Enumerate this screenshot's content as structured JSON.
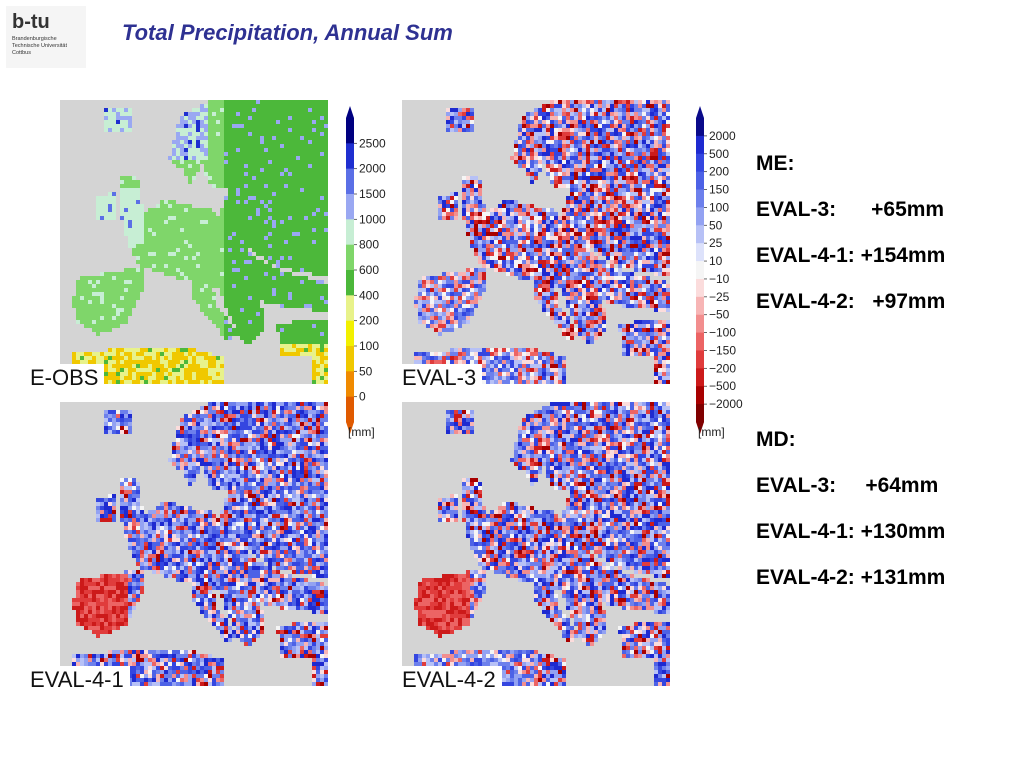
{
  "logo": {
    "mark": "b-tu",
    "line1": "Brandenburgische",
    "line2": "Technische Universität",
    "line3": "Cottbus"
  },
  "title": "Total Precipitation, Annual Sum",
  "maps": [
    {
      "label": "E-OBS"
    },
    {
      "label": "EVAL-3"
    },
    {
      "label": "EVAL-4-1"
    },
    {
      "label": "EVAL-4-2"
    }
  ],
  "colorbar_abs": {
    "unit": "[mm]",
    "ticks": [
      "2500",
      "2000",
      "1500",
      "1000",
      "800",
      "600",
      "400",
      "200",
      "100",
      "50",
      "0"
    ],
    "colors": [
      "#000080",
      "#1f2fd0",
      "#5b6fe6",
      "#9aa8f2",
      "#c7eed4",
      "#7fd66a",
      "#4cb83a",
      "#e8f28a",
      "#f2f000",
      "#f0c800",
      "#f08a00",
      "#e05a00"
    ]
  },
  "colorbar_diff": {
    "unit": "[mm]",
    "ticks": [
      "2000",
      "500",
      "200",
      "150",
      "100",
      "50",
      "25",
      "10",
      "−10",
      "−25",
      "−50",
      "−100",
      "−150",
      "−200",
      "−500",
      "−2000"
    ],
    "colors": [
      "#0a0a8a",
      "#1e2ad0",
      "#3446e0",
      "#4d62e6",
      "#6d80ec",
      "#93a2f2",
      "#b7c1f6",
      "#dde2fb",
      "#f5f5f5",
      "#fbdcdc",
      "#f7b5b5",
      "#f28e8e",
      "#ec6464",
      "#e03c3c",
      "#cc1a1a",
      "#a80000",
      "#800000"
    ]
  },
  "stats": {
    "me_header": "ME:",
    "me": [
      {
        "name": "EVAL-3:",
        "value": "+65mm"
      },
      {
        "name": "EVAL-4-1:",
        "value": "+154mm"
      },
      {
        "name": "EVAL-4-2:",
        "value": "+97mm"
      }
    ],
    "md_header": "MD:",
    "md": [
      {
        "name": "EVAL-3:",
        "value": "+64mm"
      },
      {
        "name": "EVAL-4-1:",
        "value": "+130mm"
      },
      {
        "name": "EVAL-4-2:",
        "value": "+131mm"
      }
    ]
  }
}
